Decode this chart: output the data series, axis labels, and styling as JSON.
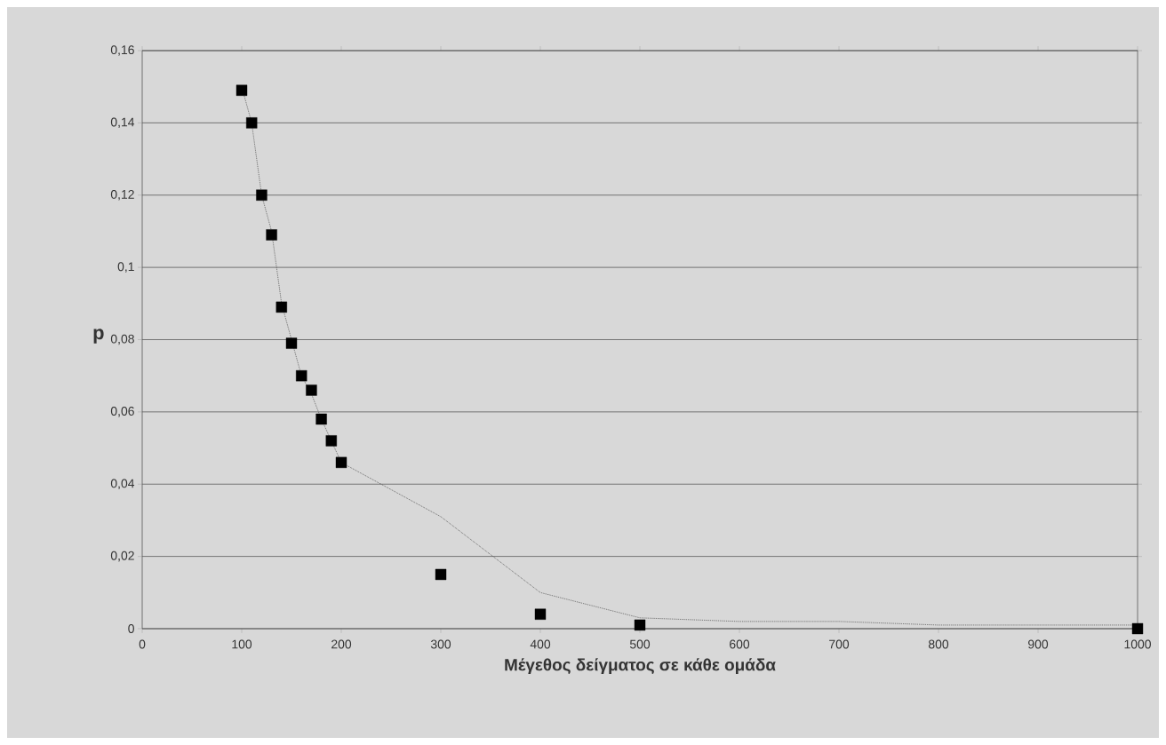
{
  "chart_data": {
    "type": "scatter",
    "xlabel": "Μέγεθος δείγματος σε κάθε ομάδα",
    "ylabel": "p",
    "xlim": [
      0,
      1000
    ],
    "xticks": [
      0,
      100,
      200,
      300,
      400,
      500,
      600,
      700,
      800,
      900,
      1000
    ],
    "ylim": [
      0,
      0.16
    ],
    "yticks": [
      0,
      {
        "value": 0.02,
        "label": "0,02"
      },
      {
        "value": 0.04,
        "label": "0,04"
      },
      {
        "value": 0.06,
        "label": "0,06"
      },
      {
        "value": 0.08,
        "label": "0,08"
      },
      {
        "value": 0.1,
        "label": "0,1"
      },
      {
        "value": 0.12,
        "label": "0,12"
      },
      {
        "value": 0.14,
        "label": "0,14"
      },
      {
        "value": 0.16,
        "label": "0,16"
      }
    ],
    "grid": "y",
    "series": [
      {
        "type": "line",
        "color": "#404040",
        "line_style": "dotted",
        "marker": "none",
        "x": [
          100,
          110,
          120,
          130,
          140,
          150,
          160,
          170,
          180,
          190,
          200,
          300,
          400,
          500,
          600,
          700,
          800,
          900,
          1000
        ],
        "values": [
          0.15,
          0.14,
          0.12,
          0.11,
          0.09,
          0.08,
          0.07,
          0.065,
          0.058,
          0.052,
          0.046,
          0.031,
          0.01,
          0.003,
          0.002,
          0.002,
          0.001,
          0.001,
          0.001
        ]
      },
      {
        "color": "#000000",
        "marker": "square",
        "x": [
          100,
          110,
          120,
          130,
          140,
          150,
          160,
          170,
          180,
          190,
          200,
          300,
          400,
          500,
          1000
        ],
        "values": [
          0.149,
          0.14,
          0.12,
          0.109,
          0.089,
          0.079,
          0.07,
          0.066,
          0.058,
          0.052,
          0.046,
          0.015,
          0.004,
          0.001,
          0
        ]
      }
    ]
  }
}
